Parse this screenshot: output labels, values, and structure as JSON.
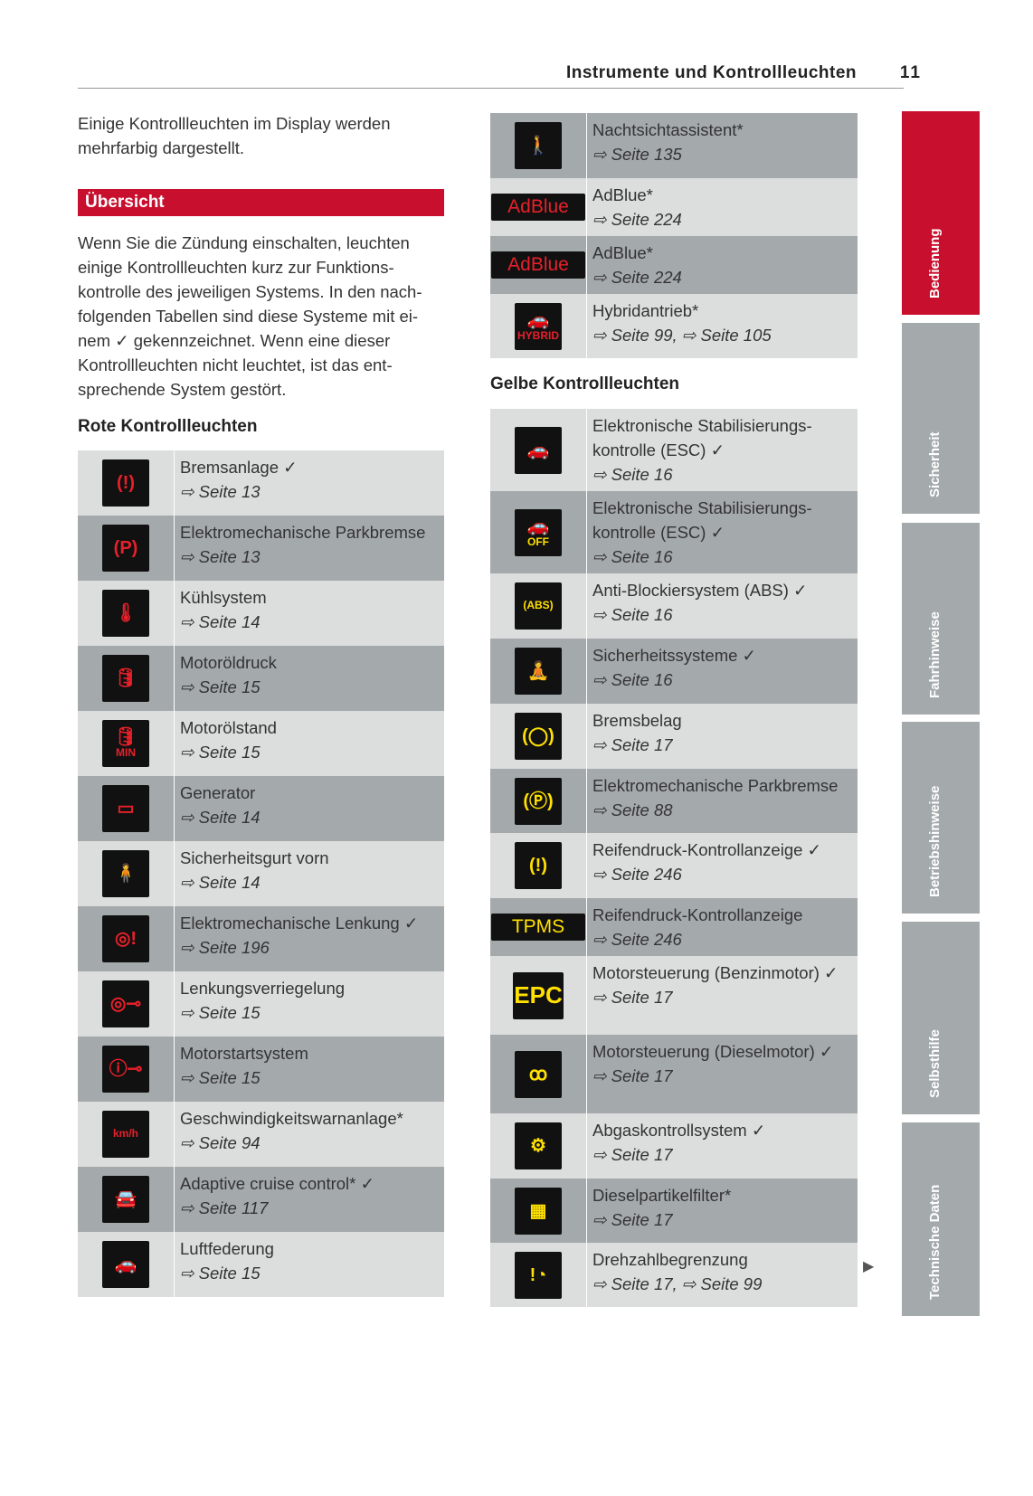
{
  "header": {
    "title": "Instrumente und Kontrollleuchten",
    "page": "11"
  },
  "intro": "Einige Kontrollleuchten im Display werden mehrfarbig dargestellt.",
  "section_title": "Übersicht",
  "section_text": "Wenn Sie die Zündung einschalten, leuchten einige Kontrollleuchten kurz zur Funktions­kontrolle des jeweiligen Systems. In den nach­folgenden Tabellen sind diese Systeme mit ei­nem ✓ gekennzeichnet. Wenn eine dieser Kontrollleuchten nicht leuchtet, ist das ent­sprechende System gestört.",
  "red_title": "Rote Kontrollleuchten",
  "yellow_title": "Gelbe Kontrollleuchten",
  "colors": {
    "red": "#c8102e",
    "yellow": "#ffe000",
    "icon_red": "#e8202a",
    "row_light": "#dcdddd",
    "row_dark": "#a4a9ab"
  },
  "red_rows": [
    {
      "icon": "brake-warning-icon",
      "glyph": "(!)",
      "title": "Bremsanlage ✓",
      "refs": [
        "Seite 13"
      ]
    },
    {
      "icon": "parking-brake-icon",
      "glyph": "(P)",
      "title": "Elektromechanische Parkbremse",
      "refs": [
        "Seite 13"
      ]
    },
    {
      "icon": "coolant-temperature-icon",
      "glyph": "🌡",
      "title": "Kühlsystem",
      "refs": [
        "Seite 14"
      ]
    },
    {
      "icon": "oil-pressure-icon",
      "glyph": "🛢",
      "title": "Motoröldruck",
      "refs": [
        "Seite 15"
      ]
    },
    {
      "icon": "oil-level-icon",
      "glyph": "🛢",
      "label": "MIN",
      "title": "Motorölstand",
      "refs": [
        "Seite 15"
      ]
    },
    {
      "icon": "battery-icon",
      "glyph": "▭",
      "title": "Generator",
      "refs": [
        "Seite 14"
      ]
    },
    {
      "icon": "seatbelt-icon",
      "glyph": "🧍",
      "title": "Sicherheitsgurt vorn",
      "refs": [
        "Seite 14"
      ]
    },
    {
      "icon": "steering-warning-icon",
      "glyph": "◎!",
      "title": "Elektromechanische Lenkung ✓",
      "refs": [
        "Seite 196"
      ]
    },
    {
      "icon": "steering-lock-icon",
      "glyph": "◎⊸",
      "title": "Lenkungsverriegelung",
      "refs": [
        "Seite 15"
      ]
    },
    {
      "icon": "engine-start-key-icon",
      "glyph": "ⓘ⊸",
      "title": "Motorstartsystem",
      "refs": [
        "Seite 15"
      ]
    },
    {
      "icon": "speed-warning-icon",
      "glyph": "",
      "label": "km/h",
      "title": "Geschwindigkeitswarnanlage*",
      "refs": [
        "Seite 94"
      ]
    },
    {
      "icon": "adaptive-cruise-icon",
      "glyph": "🚘",
      "title": "Adaptive cruise control* ✓",
      "refs": [
        "Seite 117"
      ]
    },
    {
      "icon": "air-suspension-icon",
      "glyph": "🚗",
      "title": "Luftfederung",
      "refs": [
        "Seite 15"
      ]
    }
  ],
  "red_rows_right": [
    {
      "icon": "night-vision-icon",
      "glyph": "🚶",
      "title": "Nachtsichtassistent*",
      "refs": [
        "Seite 135"
      ]
    },
    {
      "icon": "adblue-refill-icon",
      "glyph": "",
      "label": "AdBlue",
      "title": "AdBlue*",
      "refs": [
        "Seite 224"
      ]
    },
    {
      "icon": "adblue-malfunction-icon",
      "glyph": "",
      "label": "AdBlue",
      "title": "AdBlue*",
      "refs": [
        "Seite 224"
      ]
    },
    {
      "icon": "hybrid-drive-icon",
      "glyph": "🚗",
      "label": "HYBRID",
      "title": "Hybridantrieb*",
      "refs": [
        "Seite 99",
        "Seite 105"
      ]
    }
  ],
  "yellow_rows": [
    {
      "icon": "esc-icon",
      "glyph": "🚗",
      "title": "Elektronische Stabilisierungs-kontrolle (ESC) ✓",
      "refs": [
        "Seite 16"
      ]
    },
    {
      "icon": "esc-off-icon",
      "glyph": "🚗",
      "label": "OFF",
      "title": "Elektronische Stabilisierungs-kontrolle (ESC) ✓",
      "refs": [
        "Seite 16"
      ]
    },
    {
      "icon": "abs-icon",
      "glyph": "",
      "label": "(ABS)",
      "title": "Anti-Blockiersystem (ABS) ✓",
      "refs": [
        "Seite 16"
      ]
    },
    {
      "icon": "airbag-icon",
      "glyph": "🧘",
      "title": "Sicherheitssysteme ✓",
      "refs": [
        "Seite 16"
      ]
    },
    {
      "icon": "brake-pad-icon",
      "glyph": "(◯)",
      "title": "Bremsbelag",
      "refs": [
        "Seite 17"
      ]
    },
    {
      "icon": "parking-brake-fault-icon",
      "glyph": "(Ⓟ)",
      "title": "Elektromechanische Parkbremse",
      "refs": [
        "Seite 88"
      ]
    },
    {
      "icon": "tire-pressure-icon",
      "glyph": "(!)",
      "title": "Reifendruck-Kontrollanzeige ✓",
      "refs": [
        "Seite 246"
      ]
    },
    {
      "icon": "tpms-icon",
      "glyph": "",
      "label": "TPMS",
      "title": "Reifendruck-Kontrollanzeige",
      "refs": [
        "Seite 246"
      ]
    },
    {
      "icon": "epc-icon",
      "glyph": "",
      "label": "EPC",
      "title": "Motorsteuerung (Benzinmotor) ✓",
      "refs": [
        "Seite 17"
      ]
    },
    {
      "icon": "glow-plug-icon",
      "glyph": "ꝏ",
      "title": "Motorsteuerung (Dieselmotor) ✓",
      "refs": [
        "Seite 17"
      ]
    },
    {
      "icon": "engine-check-icon",
      "glyph": "⚙",
      "title": "Abgaskontrollsystem ✓",
      "refs": [
        "Seite 17"
      ]
    },
    {
      "icon": "diesel-particulate-filter-icon",
      "glyph": "▦",
      "title": "Dieselpartikelfilter*",
      "refs": [
        "Seite 17"
      ]
    },
    {
      "icon": "rpm-limit-icon",
      "glyph": "!◔",
      "title": "Drehzahlbegrenzung",
      "refs": [
        "Seite 17",
        "Seite 99"
      ]
    }
  ],
  "side_tabs": [
    "Bedienung",
    "Sicherheit",
    "Fahrhinweise",
    "Betriebshinweise",
    "Selbsthilfe",
    "Technische Daten"
  ]
}
